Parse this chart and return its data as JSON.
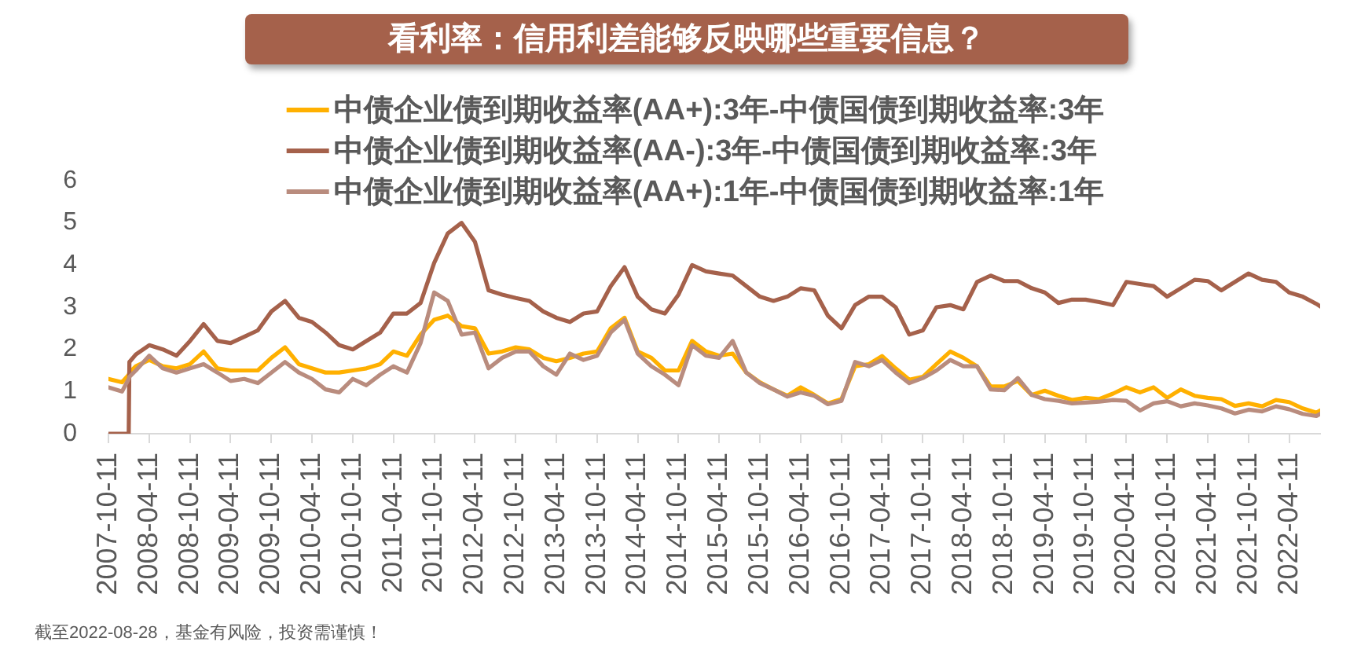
{
  "chart_data": {
    "type": "line",
    "title": "看利率：信用利差能够反映哪些重要信息？",
    "annotations": [
      "截至2022-08-28，基金有风险，投资需谨慎！"
    ],
    "x": [
      "2007-10-11",
      "2007-12-11",
      "2008-01-10",
      "2008-01-13",
      "2008-02-11",
      "2008-04-11",
      "2008-06-11",
      "2008-08-11",
      "2008-10-11",
      "2008-12-11",
      "2009-02-11",
      "2009-04-11",
      "2009-06-11",
      "2009-08-11",
      "2009-10-11",
      "2009-12-11",
      "2010-02-11",
      "2010-04-11",
      "2010-06-11",
      "2010-08-11",
      "2010-10-11",
      "2010-12-11",
      "2011-02-11",
      "2011-04-11",
      "2011-06-11",
      "2011-08-11",
      "2011-10-11",
      "2011-12-11",
      "2012-02-11",
      "2012-04-11",
      "2012-06-11",
      "2012-08-11",
      "2012-10-11",
      "2012-12-11",
      "2013-02-11",
      "2013-04-11",
      "2013-06-11",
      "2013-08-11",
      "2013-10-11",
      "2013-12-11",
      "2014-02-11",
      "2014-04-11",
      "2014-06-11",
      "2014-08-11",
      "2014-10-11",
      "2014-12-11",
      "2015-02-11",
      "2015-04-11",
      "2015-06-11",
      "2015-08-11",
      "2015-10-11",
      "2015-12-11",
      "2016-02-11",
      "2016-04-11",
      "2016-06-11",
      "2016-08-11",
      "2016-10-11",
      "2016-12-11",
      "2017-02-11",
      "2017-04-11",
      "2017-06-11",
      "2017-08-11",
      "2017-10-11",
      "2017-12-11",
      "2018-02-11",
      "2018-04-11",
      "2018-06-11",
      "2018-08-11",
      "2018-10-11",
      "2018-12-11",
      "2019-02-11",
      "2019-04-11",
      "2019-06-11",
      "2019-08-11",
      "2019-10-11",
      "2019-12-11",
      "2020-02-11",
      "2020-04-11",
      "2020-06-11",
      "2020-08-11",
      "2020-10-11",
      "2020-12-11",
      "2021-02-11",
      "2021-04-11",
      "2021-06-11",
      "2021-08-11",
      "2021-10-11",
      "2021-12-11",
      "2022-02-11",
      "2022-04-11",
      "2022-06-11",
      "2022-08-11",
      "2022-08-28"
    ],
    "series": [
      {
        "name": "中债企业债到期收益率(AA+):3年-中债国债到期收益率:3年",
        "color": "#ffb000",
        "values": [
          1.3,
          1.22,
          1.4,
          1.45,
          1.6,
          1.75,
          1.6,
          1.55,
          1.65,
          1.95,
          1.55,
          1.5,
          1.5,
          1.5,
          1.8,
          2.05,
          1.65,
          1.55,
          1.45,
          1.45,
          1.5,
          1.55,
          1.65,
          1.95,
          1.85,
          2.35,
          2.7,
          2.8,
          2.55,
          2.5,
          1.9,
          1.95,
          2.05,
          2.0,
          1.8,
          1.72,
          1.8,
          1.9,
          1.95,
          2.5,
          2.75,
          1.95,
          1.8,
          1.5,
          1.5,
          2.2,
          1.95,
          1.85,
          1.9,
          1.45,
          1.22,
          1.05,
          0.9,
          1.1,
          0.92,
          0.72,
          0.82,
          1.6,
          1.65,
          1.84,
          1.55,
          1.28,
          1.35,
          1.65,
          1.95,
          1.8,
          1.6,
          1.12,
          1.12,
          1.25,
          0.92,
          1.02,
          0.9,
          0.8,
          0.85,
          0.82,
          0.95,
          1.1,
          0.98,
          1.1,
          0.85,
          1.05,
          0.9,
          0.85,
          0.82,
          0.66,
          0.72,
          0.65,
          0.8,
          0.75,
          0.6,
          0.5,
          0.55
        ]
      },
      {
        "name": "中债企业债到期收益率(AA-):3年-中债国债到期收益率:3年",
        "color": "#a5614b",
        "values": [
          0,
          0,
          0,
          1.7,
          1.88,
          2.1,
          2.0,
          1.85,
          2.2,
          2.6,
          2.2,
          2.15,
          2.3,
          2.45,
          2.9,
          3.15,
          2.75,
          2.65,
          2.4,
          2.1,
          2.0,
          2.2,
          2.4,
          2.85,
          2.85,
          3.1,
          4.05,
          4.75,
          5.0,
          4.55,
          3.4,
          3.3,
          3.22,
          3.15,
          2.9,
          2.75,
          2.65,
          2.85,
          2.9,
          3.5,
          3.95,
          3.25,
          2.95,
          2.85,
          3.3,
          4.0,
          3.85,
          3.8,
          3.75,
          3.5,
          3.25,
          3.15,
          3.25,
          3.45,
          3.4,
          2.8,
          2.5,
          3.05,
          3.25,
          3.25,
          3.0,
          2.35,
          2.45,
          3.0,
          3.05,
          2.95,
          3.6,
          3.75,
          3.62,
          3.62,
          3.45,
          3.35,
          3.1,
          3.18,
          3.18,
          3.12,
          3.05,
          3.6,
          3.55,
          3.5,
          3.25,
          3.45,
          3.65,
          3.62,
          3.4,
          3.6,
          3.8,
          3.65,
          3.6,
          3.35,
          3.25,
          3.08,
          3.02
        ]
      },
      {
        "name": "中债企业债到期收益率(AA+):1年-中债国债到期收益率:1年",
        "color": "#b98c7e",
        "values": [
          1.1,
          1.0,
          1.3,
          1.35,
          1.5,
          1.85,
          1.55,
          1.45,
          1.55,
          1.65,
          1.45,
          1.25,
          1.3,
          1.2,
          1.45,
          1.7,
          1.45,
          1.3,
          1.05,
          0.98,
          1.3,
          1.15,
          1.4,
          1.6,
          1.45,
          2.15,
          3.35,
          3.15,
          2.35,
          2.4,
          1.55,
          1.8,
          1.95,
          1.95,
          1.6,
          1.4,
          1.9,
          1.75,
          1.85,
          2.4,
          2.7,
          1.9,
          1.6,
          1.4,
          1.15,
          2.1,
          1.85,
          1.8,
          2.2,
          1.45,
          1.2,
          1.05,
          0.88,
          0.98,
          0.9,
          0.7,
          0.78,
          1.7,
          1.6,
          1.75,
          1.45,
          1.2,
          1.32,
          1.5,
          1.75,
          1.6,
          1.6,
          1.05,
          1.03,
          1.32,
          0.92,
          0.82,
          0.78,
          0.72,
          0.74,
          0.76,
          0.8,
          0.78,
          0.55,
          0.72,
          0.77,
          0.65,
          0.72,
          0.67,
          0.6,
          0.48,
          0.57,
          0.53,
          0.65,
          0.58,
          0.47,
          0.42,
          0.47
        ]
      }
    ],
    "xlim": [
      "2007-10-11",
      "2022-08-28"
    ],
    "xticks": [
      "2007-10-11",
      "2008-04-11",
      "2008-10-11",
      "2009-04-11",
      "2009-10-11",
      "2010-04-11",
      "2010-10-11",
      "2011-04-11",
      "2011-10-11",
      "2012-04-11",
      "2012-10-11",
      "2013-04-11",
      "2013-10-11",
      "2014-04-11",
      "2014-10-11",
      "2015-04-11",
      "2015-10-11",
      "2016-04-11",
      "2016-10-11",
      "2017-04-11",
      "2017-10-11",
      "2018-04-11",
      "2018-10-11",
      "2019-04-11",
      "2019-10-11",
      "2020-04-11",
      "2020-10-11",
      "2021-04-11",
      "2021-10-11",
      "2022-04-11"
    ],
    "ylim": [
      0,
      6
    ],
    "yticks": [
      0,
      1,
      2,
      3,
      4,
      5,
      6
    ],
    "legend": "top"
  }
}
